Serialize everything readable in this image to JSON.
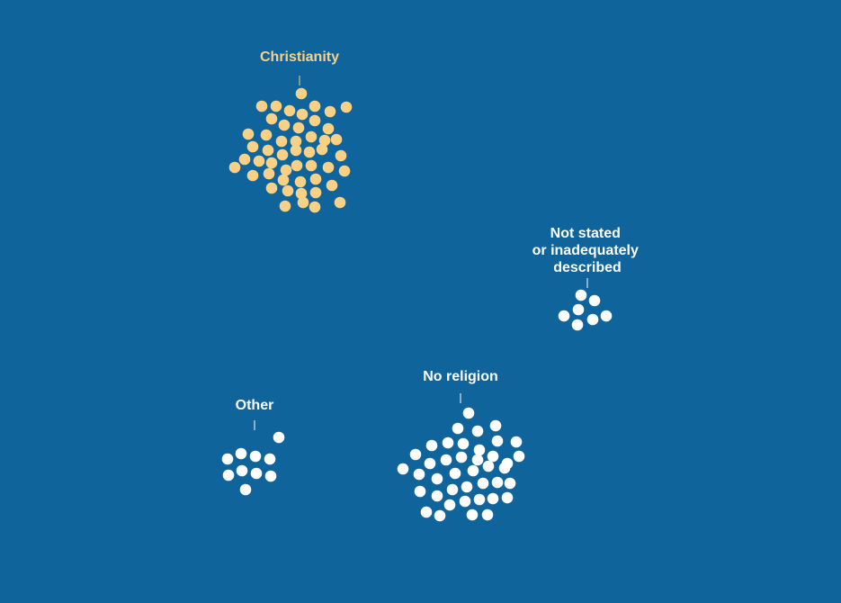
{
  "colors": {
    "background": "#0f649b",
    "christianity": "#f9d186",
    "default": "#ffffff"
  },
  "chart_data": {
    "type": "scatter",
    "title": "",
    "groups": [
      {
        "key": "christianity",
        "label_lines": [
          "Christianity"
        ],
        "dot_count": 50,
        "color": "#f9d186"
      },
      {
        "key": "not-stated",
        "label_lines": [
          "Not stated",
          "or inadequately",
          "described"
        ],
        "dot_count": 7,
        "color": "#ffffff"
      },
      {
        "key": "no-religion",
        "label_lines": [
          "No religion"
        ],
        "dot_count": 54,
        "color": "#ffffff"
      },
      {
        "key": "other",
        "label_lines": [
          "Other"
        ],
        "dot_count": 10,
        "color": "#ffffff"
      }
    ]
  }
}
